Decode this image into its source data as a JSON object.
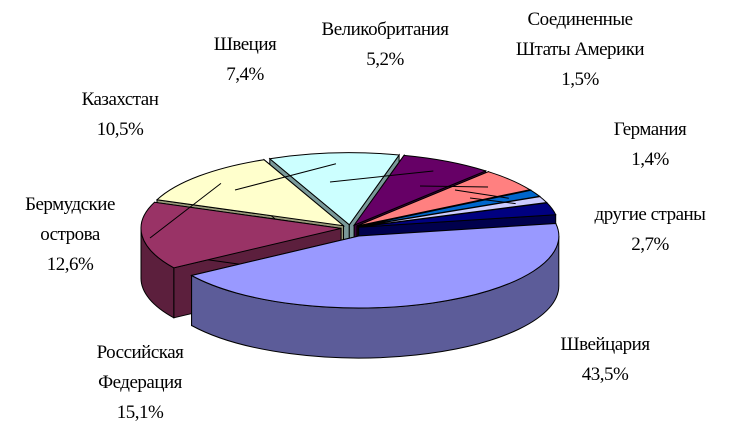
{
  "chart_data": {
    "type": "pie3d",
    "categories": [
      "Швейцария",
      "Российская Федерация",
      "Бермудские острова",
      "Казахстан",
      "Швеция",
      "Великобритания",
      "Соединенные Штаты Америки",
      "Германия",
      "другие страны"
    ],
    "values": [
      43.5,
      15.1,
      12.6,
      10.5,
      7.4,
      5.2,
      1.5,
      1.4,
      2.7
    ],
    "value_labels": [
      "43,5%",
      "15,1%",
      "12,6%",
      "10,5%",
      "7,4%",
      "5,2%",
      "1,5%",
      "1,4%",
      "2,7%"
    ],
    "colors": [
      "#9999ff",
      "#993366",
      "#ffffcc",
      "#ccffff",
      "#660066",
      "#ff8080",
      "#0066cc",
      "#ccccff",
      "#000080"
    ]
  }
}
